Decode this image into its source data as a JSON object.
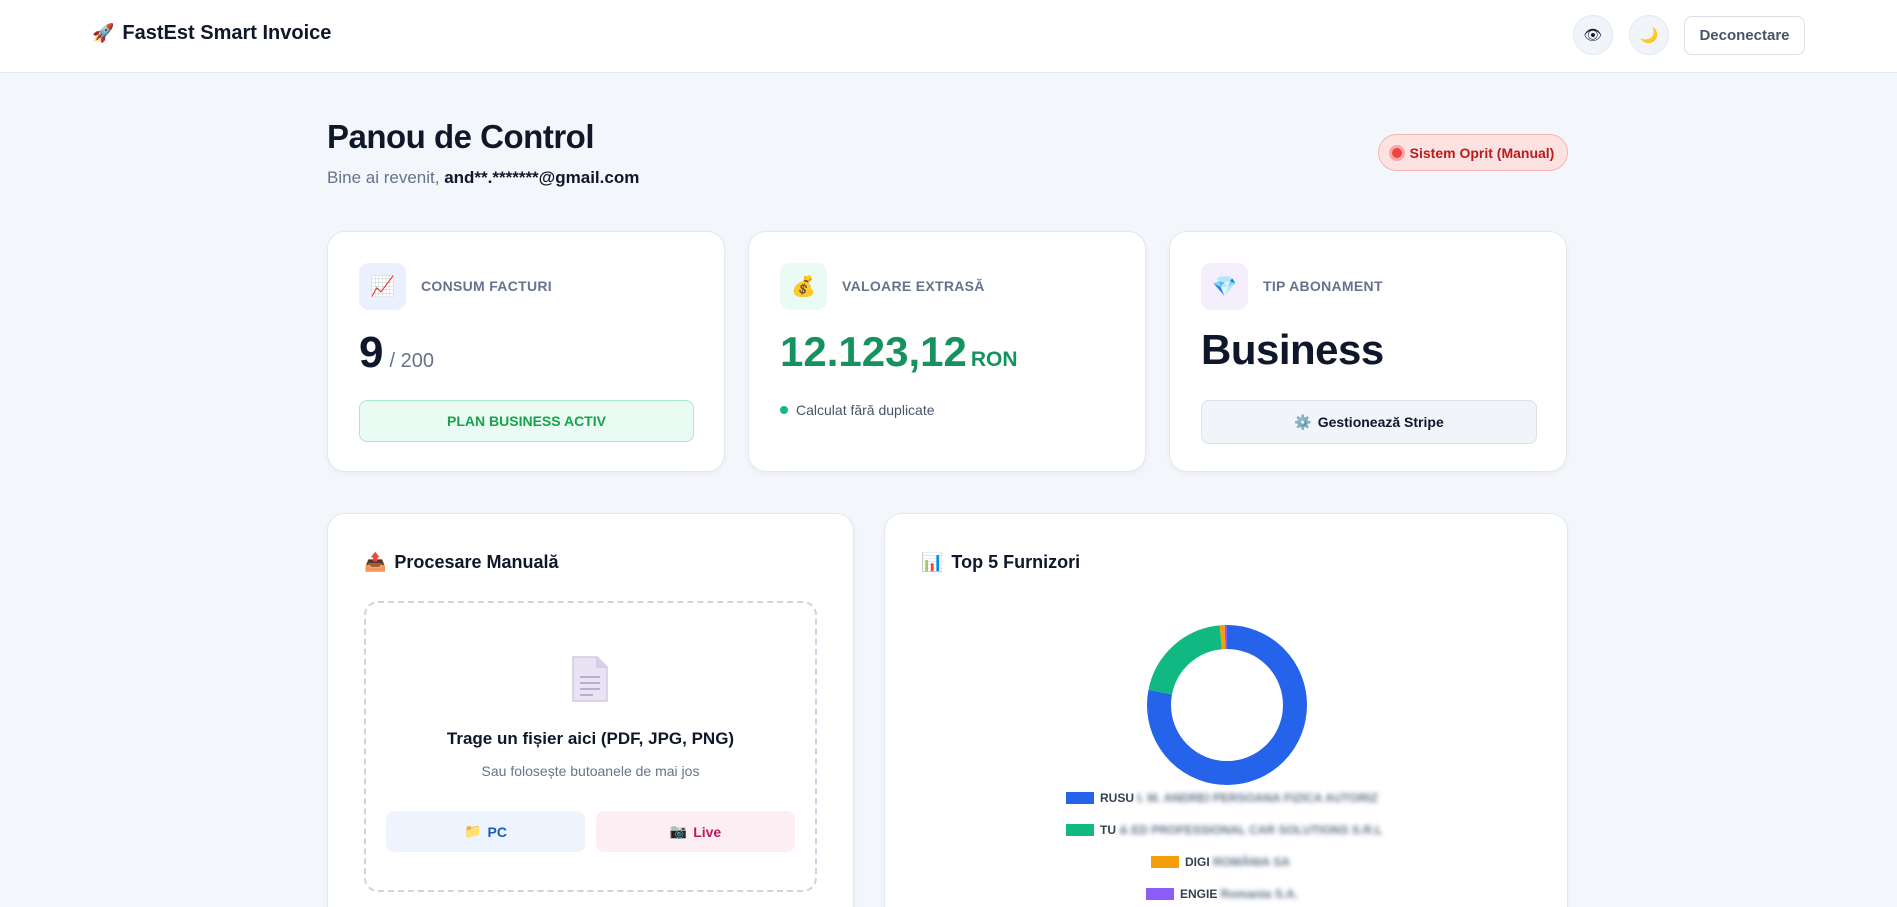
{
  "header": {
    "brand_icon": "🚀",
    "brand": "FastEst Smart Invoice",
    "eye_icon": "👁",
    "moon_icon": "🌙",
    "logout_label": "Deconectare"
  },
  "page": {
    "title": "Panou de Control",
    "welcome_prefix": "Bine ai revenit, ",
    "email": "and**.*******@gmail.com",
    "status_label": "Sistem Oprit (Manual)"
  },
  "stats": {
    "consumption": {
      "icon": "📈",
      "label": "CONSUM FACTURI",
      "used": "9",
      "limit": "/ 200",
      "badge": "PLAN BUSINESS ACTIV"
    },
    "value": {
      "icon": "💰",
      "label": "VALOARE EXTRASĂ",
      "amount": "12.123,12",
      "currency": "RON",
      "note": "Calculat fără duplicate"
    },
    "subscription": {
      "icon": "💎",
      "label": "TIP ABONAMENT",
      "plan": "Business",
      "manage_icon": "⚙️",
      "manage_label": "Gestionează Stripe"
    }
  },
  "manual": {
    "icon": "📤",
    "title": "Procesare Manuală",
    "drop_title": "Trage un fișier aici (PDF, JPG, PNG)",
    "drop_sub": "Sau folosește butoanele de mai jos",
    "pc_icon": "📁",
    "pc_label": "PC",
    "live_icon": "📷",
    "live_label": "Live"
  },
  "suppliers": {
    "icon": "📊",
    "title": "Top 5 Furnizori",
    "legend": [
      {
        "visible": "RUSU",
        "blurred": " I. M. ANDREI PERSOANA FIZICA AUTORIZ",
        "color": "#2563eb"
      },
      {
        "visible": "TU",
        "blurred": " & ED PROFESSIONAL CAR SOLUTIONS S.R.L",
        "color": "#10b981"
      },
      {
        "visible": "DIGI",
        "blurred": " ROMÂNIA SA",
        "color": "#f59e0b"
      },
      {
        "visible": "ENGIE",
        "blurred": " Romania S.A.",
        "color": "#8b5cf6"
      }
    ]
  },
  "chart_data": {
    "type": "pie",
    "categories": [
      "RUSU",
      "TU",
      "DIGI",
      "ENGIE"
    ],
    "values": [
      78,
      20.5,
      1,
      0.5
    ],
    "colors": [
      "#2563eb",
      "#10b981",
      "#f59e0b",
      "#8b5cf6"
    ],
    "title": "Top 5 Furnizori",
    "legend": "bottom"
  }
}
